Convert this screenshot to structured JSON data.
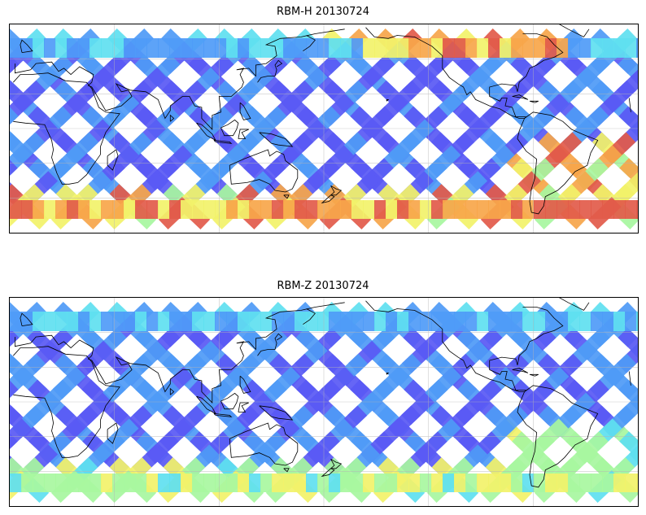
{
  "panels": [
    {
      "title": "RBM-H 20130724"
    },
    {
      "title": "RBM-Z 20130724"
    }
  ],
  "colormap": [
    "#5a5af5",
    "#4f9bf7",
    "#5fe0f0",
    "#a8f7a0",
    "#f2f26a",
    "#f7a64a",
    "#e25b4a"
  ]
}
